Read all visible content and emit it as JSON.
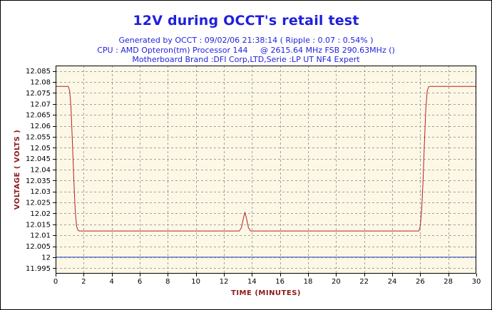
{
  "chart_data": {
    "type": "line",
    "title": "12V during OCCT's retail test",
    "subtitle_lines": [
      "Generated by OCCT : 09/02/06 21:38:14 ( Ripple : 0.07 : 0.54% )",
      "CPU : AMD Opteron(tm) Processor 144     @ 2615.64 MHz FSB 290.63MHz ()",
      "Motherboard Brand :DFI Corp,LTD,Serie :LP UT NF4 Expert"
    ],
    "xlabel": "TIME (MINUTES)",
    "ylabel": "VOLTAGE ( VOLTS )",
    "xlim": [
      0,
      30
    ],
    "ylim": [
      11.9925,
      12.0875
    ],
    "x_ticks": [
      "0",
      "2",
      "4",
      "6",
      "8",
      "10",
      "12",
      "14",
      "16",
      "18",
      "20",
      "22",
      "24",
      "26",
      "28",
      "30"
    ],
    "y_ticks": [
      "12.085",
      "12.08",
      "12.075",
      "12.07",
      "12.065",
      "12.06",
      "12.055",
      "12.05",
      "12.045",
      "12.04",
      "12.035",
      "12.03",
      "12.025",
      "12.02",
      "12.015",
      "12.01",
      "12.005",
      "12",
      "11.995"
    ],
    "grid": true,
    "plot_background": "#fdf8e6",
    "grid_color": "#a0a0a0",
    "series": [
      {
        "color": "#b22222",
        "x": [
          0,
          0.9,
          1.0,
          1.1,
          1.2,
          1.3,
          1.4,
          1.5,
          1.6,
          1.7,
          2.0,
          13.1,
          13.25,
          13.4,
          13.5,
          13.6,
          13.75,
          13.9,
          14.1,
          25.9,
          26.0,
          26.1,
          26.2,
          26.3,
          26.4,
          26.5,
          26.6,
          26.7,
          27.0,
          30
        ],
        "y": [
          12.078,
          12.078,
          12.076,
          12.068,
          12.052,
          12.035,
          12.021,
          12.014,
          12.0122,
          12.012,
          12.012,
          12.012,
          12.0135,
          12.018,
          12.0205,
          12.018,
          12.0135,
          12.012,
          12.012,
          12.012,
          12.014,
          12.021,
          12.035,
          12.052,
          12.068,
          12.076,
          12.0778,
          12.078,
          12.078,
          12.078
        ]
      },
      {
        "color": "#1f3fbf",
        "x": [
          0,
          30
        ],
        "y": [
          12.0,
          12.0
        ]
      }
    ]
  }
}
